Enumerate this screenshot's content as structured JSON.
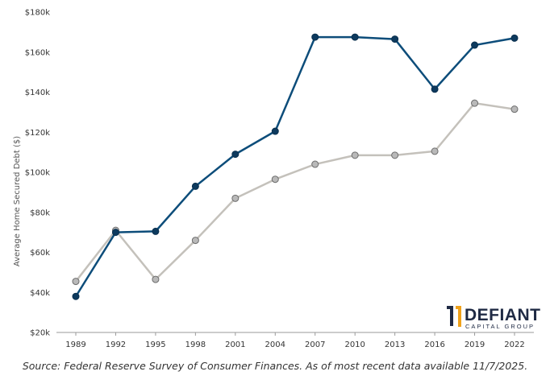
{
  "chart_data": {
    "type": "line",
    "ylabel": "Average Home Secured Debt ($)",
    "x": [
      "1989",
      "1992",
      "1995",
      "1998",
      "2001",
      "2004",
      "2007",
      "2010",
      "2013",
      "2016",
      "2019",
      "2022"
    ],
    "ylim": [
      20000,
      180000
    ],
    "yticks": [
      20000,
      40000,
      60000,
      80000,
      100000,
      120000,
      140000,
      160000,
      180000
    ],
    "ytick_labels": [
      "$20k",
      "$40k",
      "$60k",
      "$80k",
      "$100k",
      "$120k",
      "$140k",
      "$160k",
      "$180k"
    ],
    "grid": false,
    "series": [
      {
        "color": "#0d4d7a",
        "marker_fill": "#0d3a5e",
        "values": [
          38000,
          70000,
          70500,
          93000,
          109000,
          120500,
          167500,
          167500,
          166500,
          141500,
          163500,
          167000
        ]
      },
      {
        "color": "#c4c1bb",
        "marker_fill": "#b9b9b9",
        "values": [
          45500,
          71000,
          46500,
          66000,
          87000,
          96500,
          104000,
          108500,
          108500,
          110500,
          134500,
          131500
        ]
      }
    ]
  },
  "source": "Source: Federal Reserve Survey of Consumer Finances. As of most recent data available 11/7/2025.",
  "logo": {
    "name": "DEFIANT",
    "sub": "CAPITAL GROUP"
  }
}
